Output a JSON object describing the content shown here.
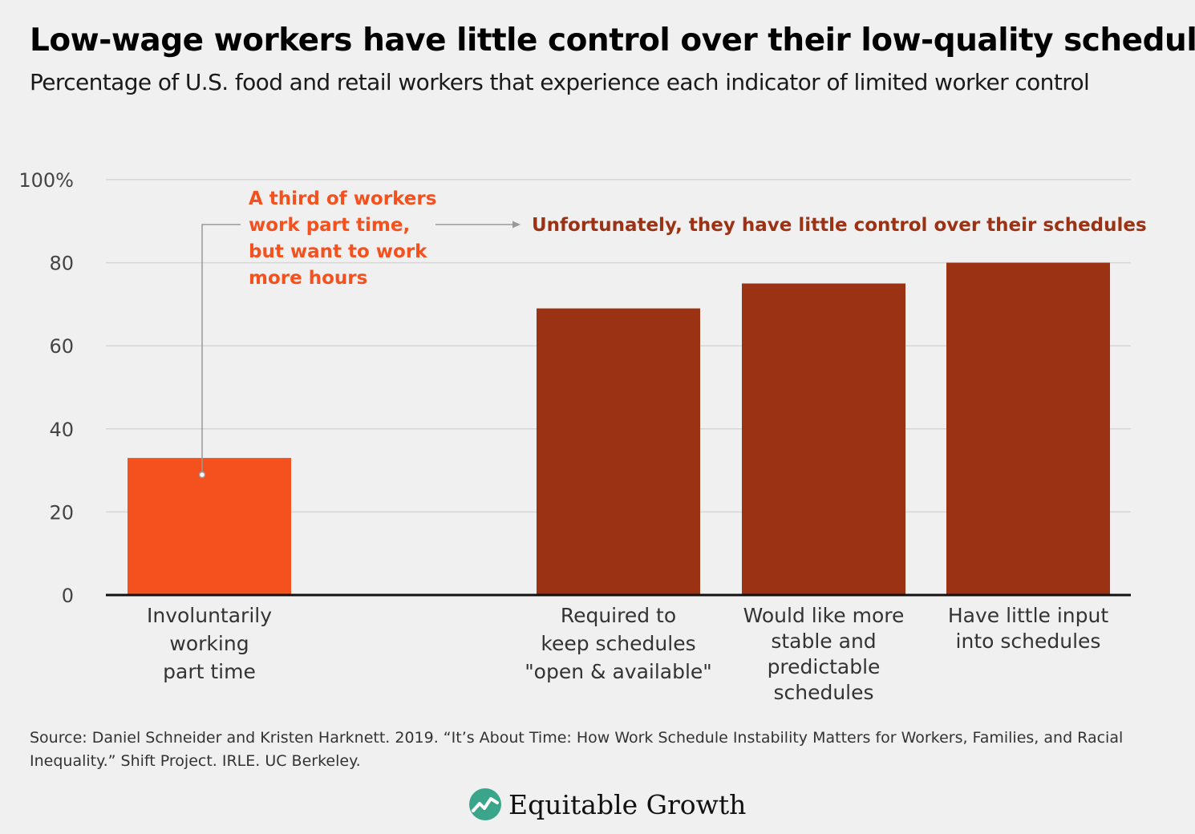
{
  "title": "Low-wage workers have little control over their low-quality schedules",
  "subtitle": "Percentage of U.S. food and retail workers that experience each indicator of limited worker control",
  "chart_data": {
    "type": "bar",
    "categories": [
      [
        "Involuntarily",
        "working",
        "part time"
      ],
      [
        "Required to",
        "keep schedules",
        "\"open & available\""
      ],
      [
        "Would like more",
        "stable and",
        "predictable",
        "schedules"
      ],
      [
        "Have little input",
        "into schedules"
      ]
    ],
    "values": [
      33,
      69,
      75,
      80
    ],
    "bar_colors": [
      "#f5511e",
      "#9c3214",
      "#9c3214",
      "#9c3214"
    ],
    "ylim": [
      0,
      100
    ],
    "yticks": [
      0,
      20,
      40,
      60,
      80,
      100
    ],
    "ytick_labels": [
      "0",
      "20",
      "40",
      "60",
      "80",
      "100%"
    ],
    "grid": true,
    "annotations": [
      {
        "lines": [
          "A third of workers",
          "work part time,",
          "but want to work",
          "more hours"
        ],
        "color": "#f5511e"
      },
      {
        "lines": [
          "Unfortunately, they have little control over their schedules"
        ],
        "color": "#9c3214"
      }
    ]
  },
  "source": "Source: Daniel Schneider and Kristen Harknett. 2019. “It’s About Time: How Work Schedule Instability Matters for Workers, Families, and Racial Inequality.” Shift Project. IRLE. UC Berkeley.",
  "logo": {
    "text": "Equitable Growth",
    "icon": "equitable-growth-logo-icon",
    "color": "#3aa58a"
  }
}
